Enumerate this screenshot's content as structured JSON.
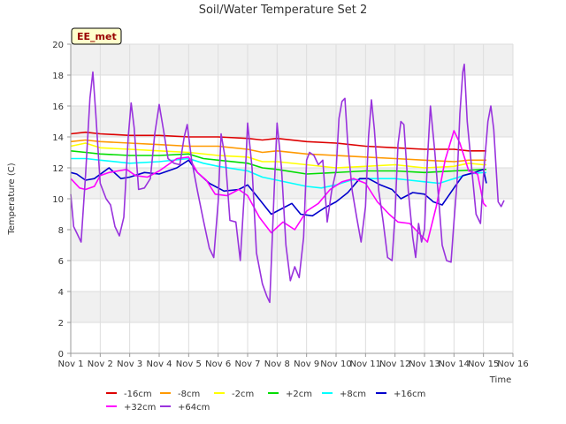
{
  "chart_data": {
    "type": "line",
    "title": "Soil/Water Temperature Set 2",
    "xlabel": "Time",
    "ylabel": "Temperature (C)",
    "badge": "EE_met",
    "ylim": [
      0,
      20
    ],
    "xlim": [
      1,
      16
    ],
    "yticks": [
      0,
      2,
      4,
      6,
      8,
      10,
      12,
      14,
      16,
      18,
      20
    ],
    "xticks": [
      {
        "v": 1,
        "label": "Nov 1"
      },
      {
        "v": 2,
        "label": "Nov 2"
      },
      {
        "v": 3,
        "label": "Nov 3"
      },
      {
        "v": 4,
        "label": "Nov 4"
      },
      {
        "v": 5,
        "label": "Nov 5"
      },
      {
        "v": 6,
        "label": "Nov 6"
      },
      {
        "v": 7,
        "label": "Nov 7"
      },
      {
        "v": 8,
        "label": "Nov 8"
      },
      {
        "v": 9,
        "label": "Nov 9"
      },
      {
        "v": 10,
        "label": "Nov 10"
      },
      {
        "v": 11,
        "label": "Nov 11"
      },
      {
        "v": 12,
        "label": "Nov 12"
      },
      {
        "v": 13,
        "label": "Nov 13"
      },
      {
        "v": 14,
        "label": "Nov 14"
      },
      {
        "v": 15,
        "label": "Nov 15"
      },
      {
        "v": 16,
        "label": "Nov 16"
      }
    ],
    "grid": true,
    "legend_position": "bottom",
    "series": [
      {
        "name": "-16cm",
        "color": "#dd0000",
        "points": [
          [
            1.0,
            14.2
          ],
          [
            1.5,
            14.3
          ],
          [
            2,
            14.2
          ],
          [
            3,
            14.1
          ],
          [
            4,
            14.1
          ],
          [
            5,
            14.0
          ],
          [
            6,
            14.0
          ],
          [
            7,
            13.9
          ],
          [
            7.5,
            13.8
          ],
          [
            8,
            13.9
          ],
          [
            9,
            13.7
          ],
          [
            10,
            13.6
          ],
          [
            11,
            13.4
          ],
          [
            12,
            13.3
          ],
          [
            13,
            13.2
          ],
          [
            14,
            13.2
          ],
          [
            14.5,
            13.1
          ],
          [
            15,
            13.1
          ],
          [
            15.1,
            13.1
          ]
        ]
      },
      {
        "name": "-8cm",
        "color": "#ff9900",
        "points": [
          [
            1.0,
            13.7
          ],
          [
            1.5,
            13.8
          ],
          [
            2,
            13.7
          ],
          [
            3,
            13.6
          ],
          [
            4,
            13.5
          ],
          [
            5,
            13.4
          ],
          [
            6,
            13.4
          ],
          [
            7,
            13.2
          ],
          [
            7.5,
            13.0
          ],
          [
            8,
            13.1
          ],
          [
            9,
            12.9
          ],
          [
            10,
            12.8
          ],
          [
            11,
            12.7
          ],
          [
            12,
            12.6
          ],
          [
            13,
            12.5
          ],
          [
            14,
            12.4
          ],
          [
            14.5,
            12.5
          ],
          [
            15,
            12.5
          ],
          [
            15.1,
            12.5
          ]
        ]
      },
      {
        "name": "-2cm",
        "color": "#ffff00",
        "points": [
          [
            1.0,
            13.4
          ],
          [
            1.5,
            13.6
          ],
          [
            2,
            13.3
          ],
          [
            3,
            13.2
          ],
          [
            4,
            13.1
          ],
          [
            5,
            13.0
          ],
          [
            6,
            12.8
          ],
          [
            7,
            12.7
          ],
          [
            7.5,
            12.4
          ],
          [
            8,
            12.4
          ],
          [
            9,
            12.2
          ],
          [
            10,
            12.0
          ],
          [
            11,
            12.1
          ],
          [
            12,
            12.2
          ],
          [
            13,
            12.0
          ],
          [
            14,
            12.1
          ],
          [
            14.5,
            12.3
          ],
          [
            15,
            12.2
          ],
          [
            15.1,
            12.2
          ]
        ]
      },
      {
        "name": "+2cm",
        "color": "#00dd00",
        "points": [
          [
            1.0,
            13.1
          ],
          [
            1.5,
            13.0
          ],
          [
            2,
            12.9
          ],
          [
            3,
            12.8
          ],
          [
            4,
            12.8
          ],
          [
            5,
            12.9
          ],
          [
            5.5,
            12.6
          ],
          [
            6,
            12.5
          ],
          [
            7,
            12.3
          ],
          [
            7.5,
            12.0
          ],
          [
            8,
            11.9
          ],
          [
            9,
            11.6
          ],
          [
            10,
            11.7
          ],
          [
            11,
            11.8
          ],
          [
            12,
            11.8
          ],
          [
            13,
            11.7
          ],
          [
            14,
            11.8
          ],
          [
            15,
            11.9
          ],
          [
            15.1,
            11.9
          ]
        ]
      },
      {
        "name": "+8cm",
        "color": "#00ffff",
        "points": [
          [
            1.0,
            12.6
          ],
          [
            1.5,
            12.6
          ],
          [
            2,
            12.5
          ],
          [
            3,
            12.3
          ],
          [
            4,
            12.4
          ],
          [
            5,
            12.6
          ],
          [
            5.5,
            12.3
          ],
          [
            6,
            12.1
          ],
          [
            7,
            11.8
          ],
          [
            7.5,
            11.4
          ],
          [
            8,
            11.2
          ],
          [
            8.5,
            11.0
          ],
          [
            9,
            10.8
          ],
          [
            9.5,
            10.7
          ],
          [
            10,
            10.9
          ],
          [
            10.5,
            11.2
          ],
          [
            11,
            11.3
          ],
          [
            12,
            11.3
          ],
          [
            12.5,
            11.2
          ],
          [
            13,
            11.1
          ],
          [
            13.5,
            11.0
          ],
          [
            14,
            11.3
          ],
          [
            14.5,
            11.6
          ],
          [
            15,
            11.7
          ],
          [
            15.1,
            11.7
          ]
        ]
      },
      {
        "name": "+16cm",
        "color": "#0000cc",
        "points": [
          [
            1.0,
            11.7
          ],
          [
            1.2,
            11.6
          ],
          [
            1.5,
            11.2
          ],
          [
            1.8,
            11.3
          ],
          [
            2.3,
            12.0
          ],
          [
            2.7,
            11.3
          ],
          [
            3.0,
            11.4
          ],
          [
            3.5,
            11.7
          ],
          [
            4.0,
            11.6
          ],
          [
            4.6,
            12.0
          ],
          [
            5.0,
            12.5
          ],
          [
            5.3,
            11.7
          ],
          [
            5.7,
            11.0
          ],
          [
            6.2,
            10.5
          ],
          [
            6.7,
            10.6
          ],
          [
            7.0,
            10.9
          ],
          [
            7.3,
            10.2
          ],
          [
            7.8,
            9.0
          ],
          [
            8.2,
            9.4
          ],
          [
            8.5,
            9.7
          ],
          [
            8.8,
            9.0
          ],
          [
            9.2,
            8.9
          ],
          [
            9.6,
            9.4
          ],
          [
            10.0,
            9.8
          ],
          [
            10.4,
            10.4
          ],
          [
            10.8,
            11.3
          ],
          [
            11.1,
            11.3
          ],
          [
            11.5,
            10.9
          ],
          [
            11.9,
            10.6
          ],
          [
            12.2,
            10.0
          ],
          [
            12.6,
            10.4
          ],
          [
            13.0,
            10.3
          ],
          [
            13.3,
            9.8
          ],
          [
            13.6,
            9.6
          ],
          [
            14.0,
            10.7
          ],
          [
            14.3,
            11.5
          ],
          [
            14.7,
            11.7
          ],
          [
            15.0,
            11.9
          ],
          [
            15.1,
            11.0
          ]
        ]
      },
      {
        "name": "+32cm",
        "color": "#ff00ff",
        "points": [
          [
            1.0,
            11.3
          ],
          [
            1.3,
            10.7
          ],
          [
            1.5,
            10.6
          ],
          [
            1.8,
            10.8
          ],
          [
            2.0,
            11.5
          ],
          [
            2.3,
            11.7
          ],
          [
            2.6,
            11.8
          ],
          [
            2.9,
            11.9
          ],
          [
            3.2,
            11.5
          ],
          [
            3.6,
            11.4
          ],
          [
            4.0,
            11.8
          ],
          [
            4.3,
            12.2
          ],
          [
            4.6,
            12.6
          ],
          [
            5.0,
            12.7
          ],
          [
            5.3,
            11.7
          ],
          [
            5.6,
            11.2
          ],
          [
            5.9,
            10.3
          ],
          [
            6.3,
            10.2
          ],
          [
            6.7,
            10.6
          ],
          [
            7.0,
            10.2
          ],
          [
            7.4,
            8.8
          ],
          [
            7.8,
            7.8
          ],
          [
            8.2,
            8.5
          ],
          [
            8.6,
            8.0
          ],
          [
            9.0,
            9.2
          ],
          [
            9.4,
            9.7
          ],
          [
            9.8,
            10.6
          ],
          [
            10.2,
            11.1
          ],
          [
            10.6,
            11.3
          ],
          [
            11.0,
            11.0
          ],
          [
            11.4,
            9.8
          ],
          [
            11.8,
            9.0
          ],
          [
            12.1,
            8.5
          ],
          [
            12.5,
            8.4
          ],
          [
            12.8,
            7.8
          ],
          [
            13.1,
            7.2
          ],
          [
            13.4,
            9.5
          ],
          [
            13.7,
            12.5
          ],
          [
            14.0,
            14.4
          ],
          [
            14.2,
            13.6
          ],
          [
            14.5,
            11.8
          ],
          [
            14.8,
            11.6
          ],
          [
            15.0,
            9.7
          ],
          [
            15.1,
            9.5
          ]
        ]
      },
      {
        "name": "+64cm",
        "color": "#9933dd",
        "points": [
          [
            1.0,
            10.3
          ],
          [
            1.1,
            8.2
          ],
          [
            1.2,
            7.8
          ],
          [
            1.35,
            7.2
          ],
          [
            1.5,
            11.5
          ],
          [
            1.65,
            16.5
          ],
          [
            1.75,
            18.2
          ],
          [
            1.85,
            15.5
          ],
          [
            2.0,
            11.0
          ],
          [
            2.2,
            10.0
          ],
          [
            2.35,
            9.6
          ],
          [
            2.5,
            8.2
          ],
          [
            2.65,
            7.6
          ],
          [
            2.8,
            8.8
          ],
          [
            2.95,
            14.0
          ],
          [
            3.05,
            16.2
          ],
          [
            3.15,
            14.6
          ],
          [
            3.3,
            10.6
          ],
          [
            3.5,
            10.7
          ],
          [
            3.7,
            11.3
          ],
          [
            3.85,
            14.2
          ],
          [
            4.0,
            16.1
          ],
          [
            4.15,
            14.4
          ],
          [
            4.3,
            12.6
          ],
          [
            4.5,
            12.3
          ],
          [
            4.7,
            12.2
          ],
          [
            4.85,
            14.0
          ],
          [
            4.95,
            14.8
          ],
          [
            5.1,
            12.5
          ],
          [
            5.3,
            10.5
          ],
          [
            5.5,
            8.6
          ],
          [
            5.7,
            6.8
          ],
          [
            5.85,
            6.2
          ],
          [
            6.0,
            9.8
          ],
          [
            6.1,
            14.2
          ],
          [
            6.25,
            12.5
          ],
          [
            6.4,
            8.6
          ],
          [
            6.6,
            8.5
          ],
          [
            6.75,
            6.0
          ],
          [
            6.9,
            10.8
          ],
          [
            7.0,
            14.9
          ],
          [
            7.15,
            12.0
          ],
          [
            7.3,
            6.5
          ],
          [
            7.5,
            4.5
          ],
          [
            7.65,
            3.7
          ],
          [
            7.75,
            3.3
          ],
          [
            7.9,
            10.5
          ],
          [
            8.0,
            14.9
          ],
          [
            8.15,
            12.0
          ],
          [
            8.3,
            7.0
          ],
          [
            8.45,
            4.7
          ],
          [
            8.6,
            5.6
          ],
          [
            8.75,
            4.9
          ],
          [
            8.9,
            7.5
          ],
          [
            9.0,
            12.5
          ],
          [
            9.1,
            13.0
          ],
          [
            9.25,
            12.8
          ],
          [
            9.4,
            12.2
          ],
          [
            9.55,
            12.5
          ],
          [
            9.7,
            8.5
          ],
          [
            9.85,
            10.5
          ],
          [
            10.0,
            11.8
          ],
          [
            10.1,
            15.2
          ],
          [
            10.2,
            16.3
          ],
          [
            10.3,
            16.5
          ],
          [
            10.4,
            13.5
          ],
          [
            10.55,
            10.5
          ],
          [
            10.7,
            8.8
          ],
          [
            10.85,
            7.2
          ],
          [
            11.0,
            9.5
          ],
          [
            11.1,
            14.0
          ],
          [
            11.2,
            16.4
          ],
          [
            11.3,
            14.5
          ],
          [
            11.45,
            10.5
          ],
          [
            11.6,
            8.5
          ],
          [
            11.75,
            6.2
          ],
          [
            11.9,
            6.0
          ],
          [
            12.0,
            9.0
          ],
          [
            12.1,
            13.5
          ],
          [
            12.2,
            15.0
          ],
          [
            12.3,
            14.8
          ],
          [
            12.45,
            10.5
          ],
          [
            12.6,
            7.5
          ],
          [
            12.7,
            6.2
          ],
          [
            12.8,
            8.4
          ],
          [
            12.9,
            7.2
          ],
          [
            13.0,
            8.0
          ],
          [
            13.1,
            12.5
          ],
          [
            13.2,
            16.0
          ],
          [
            13.35,
            13.0
          ],
          [
            13.5,
            9.5
          ],
          [
            13.6,
            7.0
          ],
          [
            13.75,
            6.0
          ],
          [
            13.9,
            5.9
          ],
          [
            14.0,
            8.5
          ],
          [
            14.1,
            11.0
          ],
          [
            14.2,
            15.5
          ],
          [
            14.3,
            18.2
          ],
          [
            14.35,
            18.7
          ],
          [
            14.45,
            15.0
          ],
          [
            14.6,
            12.0
          ],
          [
            14.75,
            9.0
          ],
          [
            14.9,
            8.4
          ],
          [
            15.0,
            11.5
          ],
          [
            15.15,
            15.0
          ],
          [
            15.25,
            16.0
          ],
          [
            15.35,
            14.5
          ],
          [
            15.5,
            9.8
          ],
          [
            15.6,
            9.5
          ],
          [
            15.7,
            9.9
          ]
        ]
      }
    ]
  }
}
